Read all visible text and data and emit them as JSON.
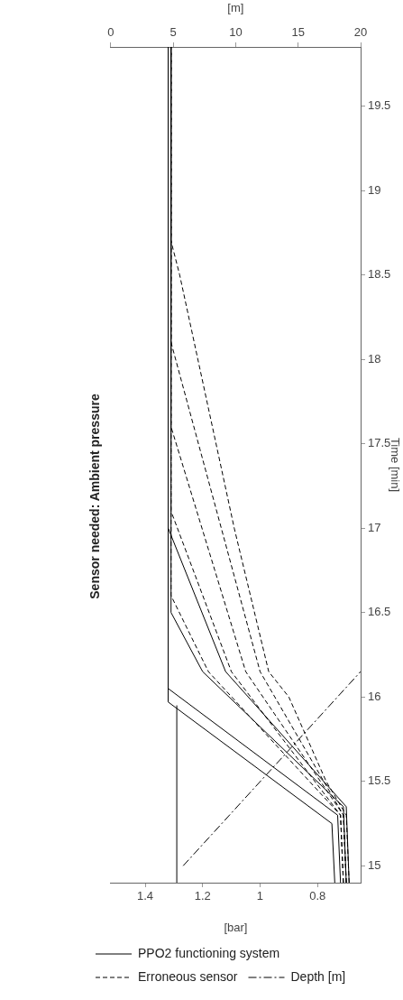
{
  "chart_data": {
    "type": "line",
    "title": "Sensor needed: Ambient pressure",
    "xlabel": "[bar]",
    "ylabel": "Time [min]",
    "x2label": "[m]",
    "xlim": [
      1.52,
      0.65
    ],
    "xticks": [
      0.8,
      1,
      1.2,
      1.4
    ],
    "ylim": [
      14.9,
      19.85
    ],
    "yticks": [
      15,
      15.5,
      16,
      16.5,
      17,
      17.5,
      18,
      18.5,
      19,
      19.5
    ],
    "x2lim": [
      0,
      20
    ],
    "x2ticks": [
      0,
      5,
      10,
      15,
      20
    ],
    "legend": "bottom left",
    "marker": "none",
    "grid": false,
    "series": [
      {
        "name": "PPO2 functioning system",
        "color": "#000000",
        "line_style": "solid",
        "x": [
          0.74,
          0.75,
          1.32,
          1.32
        ],
        "values": [
          14.9,
          15.25,
          15.97,
          19.85
        ]
      },
      {
        "color": "#000000",
        "line_style": "solid",
        "x": [
          0.72,
          0.73,
          1.32,
          1.32
        ],
        "values": [
          14.9,
          15.3,
          16.05,
          19.85
        ]
      },
      {
        "color": "#000000",
        "line_style": "solid",
        "x": [
          0.7,
          0.71,
          1.2,
          1.31,
          1.31
        ],
        "values": [
          14.9,
          15.35,
          16.15,
          16.5,
          19.85
        ]
      },
      {
        "color": "#000000",
        "line_style": "solid",
        "x": [
          0.69,
          0.7,
          1.12,
          1.32,
          1.32
        ],
        "values": [
          14.9,
          15.35,
          16.15,
          17.0,
          19.85
        ]
      },
      {
        "color": "#000000",
        "line_style": "solid",
        "x": [
          1.29,
          1.29
        ],
        "values": [
          14.9,
          15.95
        ]
      },
      {
        "name": "Erroneous sensor",
        "color": "#000000",
        "line_style": "dashed",
        "x": [
          0.71,
          0.72,
          1.18,
          1.31,
          1.31
        ],
        "values": [
          14.9,
          15.3,
          16.15,
          16.6,
          19.85
        ]
      },
      {
        "color": "#000000",
        "line_style": "dashed",
        "x": [
          0.71,
          0.72,
          1.1,
          1.31,
          1.31
        ],
        "values": [
          14.9,
          15.3,
          16.15,
          17.1,
          19.85
        ]
      },
      {
        "color": "#000000",
        "line_style": "dashed",
        "x": [
          0.7,
          0.71,
          1.05,
          1.31,
          1.31
        ],
        "values": [
          14.9,
          15.3,
          16.15,
          17.6,
          19.85
        ]
      },
      {
        "color": "#000000",
        "line_style": "dashed",
        "x": [
          0.7,
          0.71,
          1.0,
          1.31,
          1.31
        ],
        "values": [
          14.9,
          15.3,
          16.15,
          18.1,
          19.85
        ]
      },
      {
        "color": "#000000",
        "line_style": "dashed",
        "x": [
          0.69,
          0.7,
          0.77,
          0.9,
          0.97,
          1.09,
          1.28,
          1.31,
          1.31
        ],
        "values": [
          14.9,
          15.3,
          15.5,
          16,
          16.15,
          17,
          18.5,
          18.7,
          19.85
        ]
      },
      {
        "name": "Depth [m]",
        "color": "#000000",
        "line_style": "dashdot",
        "axis": "x2",
        "x": [
          5.8,
          20
        ],
        "values": [
          15,
          16.15
        ]
      }
    ]
  }
}
